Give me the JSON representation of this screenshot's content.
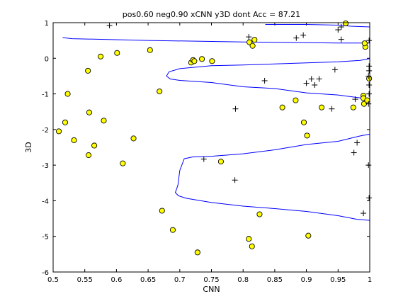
{
  "chart_data": {
    "type": "scatter",
    "title": "pos0.60 neg0.90 xCNN y3D dont Acc = 87.21",
    "xlabel": "CNN",
    "ylabel": "3D",
    "xlim": [
      0.5,
      1.0
    ],
    "ylim": [
      -6,
      1
    ],
    "x_ticks": [
      0.5,
      0.55,
      0.6,
      0.65,
      0.7,
      0.75,
      0.8,
      0.85,
      0.9,
      0.95,
      1.0
    ],
    "x_tick_labels": [
      "0.5",
      "0.55",
      "0.6",
      "0.65",
      "0.7",
      "0.75",
      "0.8",
      "0.85",
      "0.9",
      "0.95",
      "1"
    ],
    "y_ticks": [
      -6,
      -5,
      -4,
      -3,
      -2,
      -1,
      0,
      1
    ],
    "y_tick_labels": [
      "-6",
      "-5",
      "-4",
      "-3",
      "-2",
      "-1",
      "0",
      "1"
    ],
    "grid": false,
    "colors": {
      "circle_fill": "#ffff00",
      "circle_edge": "#000000",
      "plus": "#000000",
      "boundary": "#0000ff"
    },
    "series": [
      {
        "marker": "circle",
        "points": [
          [
            0.509,
            -2.05
          ],
          [
            0.519,
            -1.8
          ],
          [
            0.523,
            -1.0
          ],
          [
            0.533,
            -2.3
          ],
          [
            0.555,
            -0.35
          ],
          [
            0.557,
            -1.52
          ],
          [
            0.556,
            -2.72
          ],
          [
            0.565,
            -2.45
          ],
          [
            0.575,
            0.05
          ],
          [
            0.58,
            -1.75
          ],
          [
            0.601,
            0.15
          ],
          [
            0.61,
            -2.95
          ],
          [
            0.627,
            -2.25
          ],
          [
            0.653,
            0.23
          ],
          [
            0.668,
            -0.93
          ],
          [
            0.672,
            -4.28
          ],
          [
            0.689,
            -4.82
          ],
          [
            0.718,
            -0.12
          ],
          [
            0.721,
            -0.05
          ],
          [
            0.723,
            -0.08
          ],
          [
            0.728,
            -5.45
          ],
          [
            0.735,
            -0.02
          ],
          [
            0.751,
            -0.08
          ],
          [
            0.765,
            -2.9
          ],
          [
            0.81,
            0.45
          ],
          [
            0.809,
            -5.07
          ],
          [
            0.814,
            -5.28
          ],
          [
            0.818,
            0.52
          ],
          [
            0.815,
            0.35
          ],
          [
            0.826,
            -4.38
          ],
          [
            0.862,
            -1.38
          ],
          [
            0.883,
            -1.18
          ],
          [
            0.896,
            -1.8
          ],
          [
            0.901,
            -2.17
          ],
          [
            0.903,
            -4.98
          ],
          [
            0.924,
            -1.38
          ],
          [
            0.962,
            0.98
          ],
          [
            0.974,
            -1.38
          ],
          [
            0.99,
            -1.05
          ],
          [
            0.99,
            -1.12
          ],
          [
            0.991,
            -1.28
          ],
          [
            0.993,
            0.32
          ],
          [
            0.992,
            0.42
          ],
          [
            0.996,
            -1.18
          ],
          [
            0.999,
            -0.57
          ]
        ]
      },
      {
        "marker": "plus",
        "points": [
          [
            0.589,
            0.92
          ],
          [
            0.809,
            0.6
          ],
          [
            0.834,
            -0.63
          ],
          [
            0.884,
            0.57
          ],
          [
            0.895,
            0.65
          ],
          [
            0.9,
            -0.7
          ],
          [
            0.908,
            -0.58
          ],
          [
            0.913,
            -0.75
          ],
          [
            0.92,
            -0.58
          ],
          [
            0.94,
            -1.42
          ],
          [
            0.945,
            -0.32
          ],
          [
            0.955,
            0.53
          ],
          [
            0.95,
            0.8
          ],
          [
            0.955,
            0.88
          ],
          [
            0.977,
            -1.15
          ],
          [
            0.975,
            -2.65
          ],
          [
            0.98,
            -2.37
          ],
          [
            0.99,
            -4.35
          ],
          [
            0.998,
            -3.0
          ],
          [
            0.999,
            -3.92
          ],
          [
            0.999,
            -0.22
          ],
          [
            0.998,
            -0.5
          ],
          [
            0.999,
            -0.75
          ],
          [
            0.999,
            -0.35
          ],
          [
            0.999,
            0.5
          ],
          [
            0.999,
            -1.0
          ],
          [
            0.998,
            -1.28
          ],
          [
            0.788,
            -1.42
          ],
          [
            0.787,
            -3.42
          ],
          [
            0.738,
            -2.83
          ]
        ]
      }
    ],
    "boundaries": [
      [
        [
          0.515,
          0.58
        ],
        [
          0.53,
          0.55
        ],
        [
          0.65,
          0.5
        ],
        [
          0.8,
          0.46
        ],
        [
          0.95,
          0.43
        ],
        [
          1.0,
          0.43
        ]
      ],
      [
        [
          0.835,
          0.95
        ],
        [
          0.9,
          0.95
        ],
        [
          0.95,
          0.93
        ],
        [
          0.97,
          0.9
        ],
        [
          1.0,
          0.88
        ]
      ],
      [
        [
          1.0,
          -0.01
        ],
        [
          0.985,
          -0.06
        ],
        [
          0.95,
          -0.1
        ],
        [
          0.9,
          -0.13
        ],
        [
          0.85,
          -0.16
        ],
        [
          0.8,
          -0.19
        ],
        [
          0.75,
          -0.21
        ],
        [
          0.7,
          -0.29
        ],
        [
          0.683,
          -0.38
        ],
        [
          0.679,
          -0.5
        ],
        [
          0.685,
          -0.58
        ],
        [
          0.7,
          -0.62
        ],
        [
          0.75,
          -0.68
        ],
        [
          0.8,
          -0.8
        ],
        [
          0.85,
          -0.85
        ],
        [
          0.9,
          -0.97
        ],
        [
          0.95,
          -1.03
        ],
        [
          0.98,
          -1.1
        ],
        [
          1.0,
          -1.15
        ]
      ],
      [
        [
          1.0,
          -2.13
        ],
        [
          0.985,
          -2.18
        ],
        [
          0.95,
          -2.33
        ],
        [
          0.9,
          -2.42
        ],
        [
          0.85,
          -2.57
        ],
        [
          0.8,
          -2.68
        ],
        [
          0.75,
          -2.75
        ],
        [
          0.72,
          -2.77
        ],
        [
          0.707,
          -2.82
        ],
        [
          0.7,
          -3.15
        ],
        [
          0.697,
          -3.57
        ],
        [
          0.693,
          -3.77
        ],
        [
          0.698,
          -3.86
        ],
        [
          0.71,
          -3.93
        ],
        [
          0.75,
          -4.05
        ],
        [
          0.8,
          -4.15
        ],
        [
          0.85,
          -4.22
        ],
        [
          0.9,
          -4.3
        ],
        [
          0.95,
          -4.42
        ],
        [
          0.98,
          -4.52
        ],
        [
          1.0,
          -4.55
        ]
      ]
    ]
  }
}
